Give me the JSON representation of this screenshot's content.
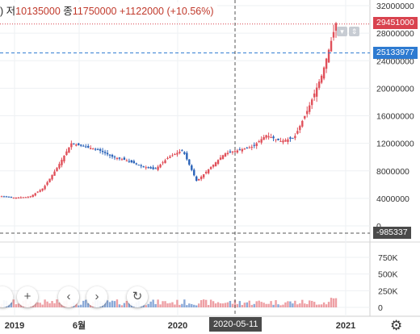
{
  "header": {
    "prefix": ")",
    "low_label": "저",
    "low_value": "10135000",
    "close_label": "종",
    "close_value": "11750000",
    "change": "+1122000 (+10.56%)"
  },
  "chart_data": [
    {
      "type": "candlestick",
      "title": "",
      "y_ticks": [
        "32000000",
        "28000000",
        "24000000",
        "20000000",
        "16000000",
        "12000000",
        "8000000",
        "4000000",
        "0"
      ],
      "ylim": [
        -1800000,
        32800000
      ],
      "x_ticks": [
        "2019",
        "6월",
        "2020",
        "2021"
      ],
      "last_price_tag": "29451000",
      "crosshair_price_tag": "25133977",
      "crosshair_date": "2020-05-11",
      "grid": true,
      "colors": {
        "up": "#e0505a",
        "down": "#2962b8"
      },
      "approx_price_path": [
        [
          "2019-01",
          4300000
        ],
        [
          "2019-02",
          4100000
        ],
        [
          "2019-03",
          4200000
        ],
        [
          "2019-04",
          5500000
        ],
        [
          "2019-05",
          8500000
        ],
        [
          "2019-06",
          12000000
        ],
        [
          "2019-07",
          11500000
        ],
        [
          "2019-08",
          11000000
        ],
        [
          "2019-09",
          10000000
        ],
        [
          "2019-10",
          9500000
        ],
        [
          "2019-11",
          8700000
        ],
        [
          "2019-12",
          8200000
        ],
        [
          "2020-01",
          10000000
        ],
        [
          "2020-02",
          11000000
        ],
        [
          "2020-03",
          6500000
        ],
        [
          "2020-04",
          8500000
        ],
        [
          "2020-05",
          10500000
        ],
        [
          "2020-06",
          11000000
        ],
        [
          "2020-07",
          11500000
        ],
        [
          "2020-08",
          13200000
        ],
        [
          "2020-09",
          12300000
        ],
        [
          "2020-10",
          12800000
        ],
        [
          "2020-11",
          17000000
        ],
        [
          "2020-12",
          22000000
        ],
        [
          "2020-12-end",
          29451000
        ]
      ]
    },
    {
      "type": "bar",
      "title": "",
      "y_ticks": [
        "750K",
        "500K",
        "250K",
        "0"
      ],
      "ylim": [
        0,
        800000
      ],
      "series": [
        {
          "name": "",
          "values": "volume bars (small, unlabeled)"
        }
      ]
    },
    {
      "type": "line",
      "title": "",
      "indicator_tag": "-985337"
    }
  ],
  "toolbar": {
    "plus": "+",
    "prev": "‹",
    "next": "›",
    "reset": "↻"
  },
  "colors": {
    "up": "#e0505a",
    "down": "#2962b8",
    "last_price_bg": "#d9434f",
    "crosshair_bg": "#2e7bd1"
  }
}
